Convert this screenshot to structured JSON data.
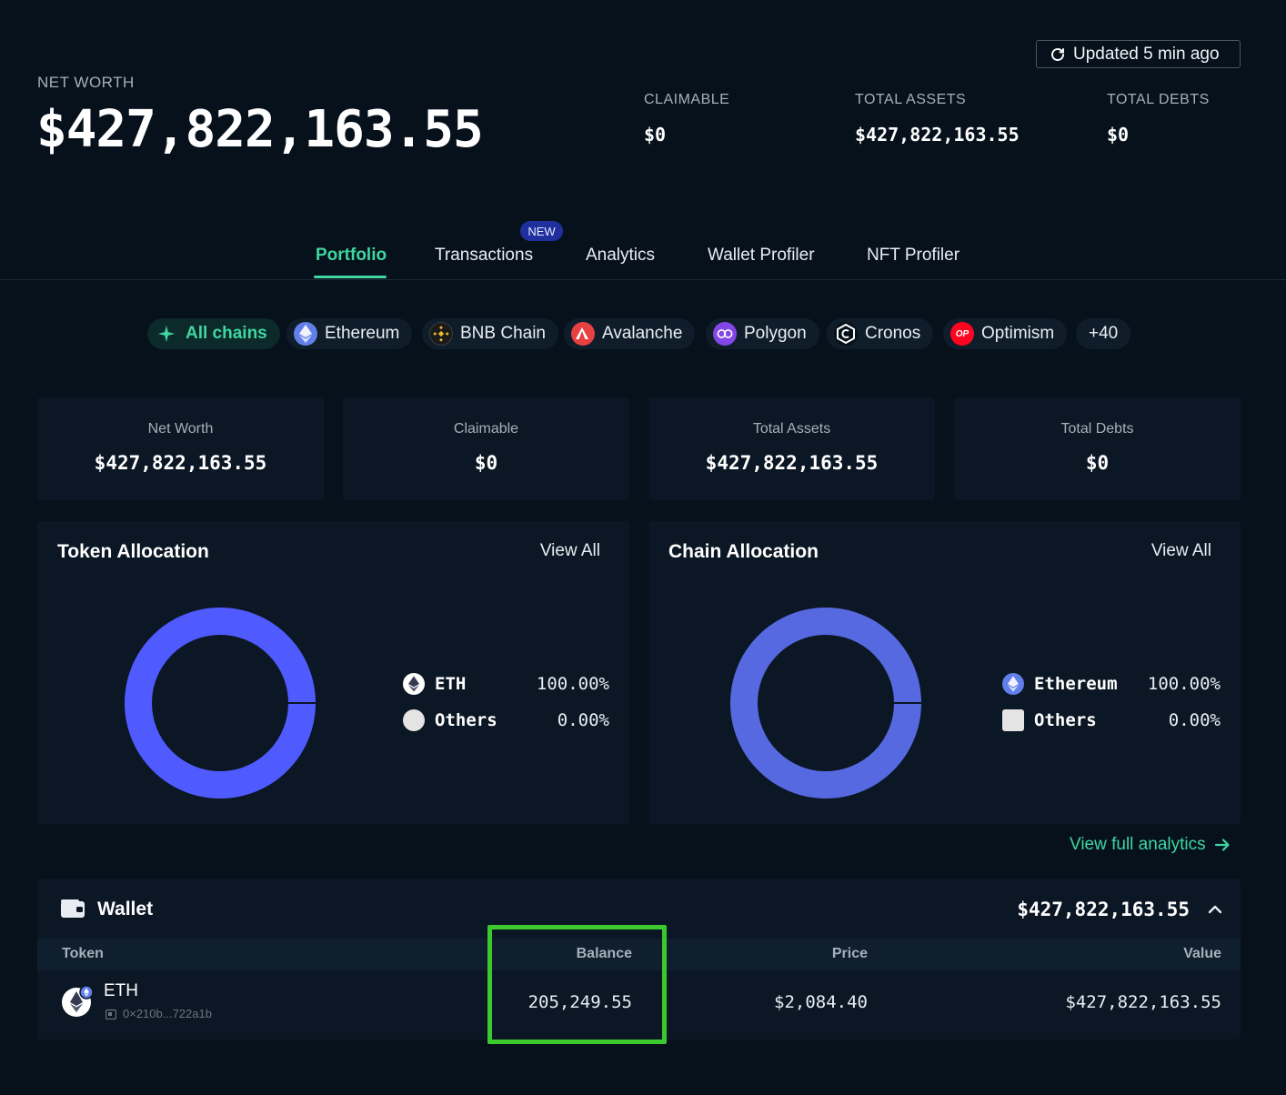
{
  "header": {
    "updated_label": "Updated 5 min ago",
    "net_worth_label": "NET WORTH",
    "net_worth_value": "$427,822,163.55",
    "claimable_label": "CLAIMABLE",
    "claimable_value": "$0",
    "total_assets_label": "TOTAL ASSETS",
    "total_assets_value": "$427,822,163.55",
    "total_debts_label": "TOTAL DEBTS",
    "total_debts_value": "$0"
  },
  "tabs": [
    {
      "label": "Portfolio",
      "active": true
    },
    {
      "label": "Transactions",
      "badge": "NEW"
    },
    {
      "label": "Analytics"
    },
    {
      "label": "Wallet Profiler"
    },
    {
      "label": "NFT Profiler"
    }
  ],
  "chains": [
    {
      "label": "All chains",
      "icon": "all-chains-icon",
      "active": true
    },
    {
      "label": "Ethereum",
      "icon": "ethereum-icon",
      "color": "#627eea"
    },
    {
      "label": "BNB Chain",
      "icon": "bnb-icon",
      "color": "#f3ba2f"
    },
    {
      "label": "Avalanche",
      "icon": "avalanche-icon",
      "color": "#e84142"
    },
    {
      "label": "Polygon",
      "icon": "polygon-icon",
      "color": "#8247e5"
    },
    {
      "label": "Cronos",
      "icon": "cronos-icon",
      "color": "#ffffff"
    },
    {
      "label": "Optimism",
      "icon": "optimism-icon",
      "color": "#ff0420",
      "badge_text": "OP"
    },
    {
      "label": "+40"
    }
  ],
  "stats": [
    {
      "label": "Net Worth",
      "value": "$427,822,163.55"
    },
    {
      "label": "Claimable",
      "value": "$0"
    },
    {
      "label": "Total Assets",
      "value": "$427,822,163.55"
    },
    {
      "label": "Total Debts",
      "value": "$0"
    }
  ],
  "token_allocation": {
    "title": "Token Allocation",
    "view_all": "View All",
    "color": "#4f5bff",
    "legend": [
      {
        "name": "ETH",
        "pct": "100.00%",
        "value": 100
      },
      {
        "name": "Others",
        "pct": "0.00%",
        "value": 0
      }
    ]
  },
  "chain_allocation": {
    "title": "Chain Allocation",
    "view_all": "View All",
    "color": "#5669e0",
    "legend": [
      {
        "name": "Ethereum",
        "pct": "100.00%",
        "value": 100
      },
      {
        "name": "Others",
        "pct": "0.00%",
        "value": 0
      }
    ]
  },
  "analytics_link": "View full analytics",
  "wallet": {
    "title": "Wallet",
    "total": "$427,822,163.55",
    "columns": [
      "Token",
      "Balance",
      "Price",
      "Value"
    ],
    "rows": [
      {
        "token": "ETH",
        "address": "0×210b...722a1b",
        "balance": "205,249.55",
        "price": "$2,084.40",
        "value": "$427,822,163.55"
      }
    ]
  }
}
